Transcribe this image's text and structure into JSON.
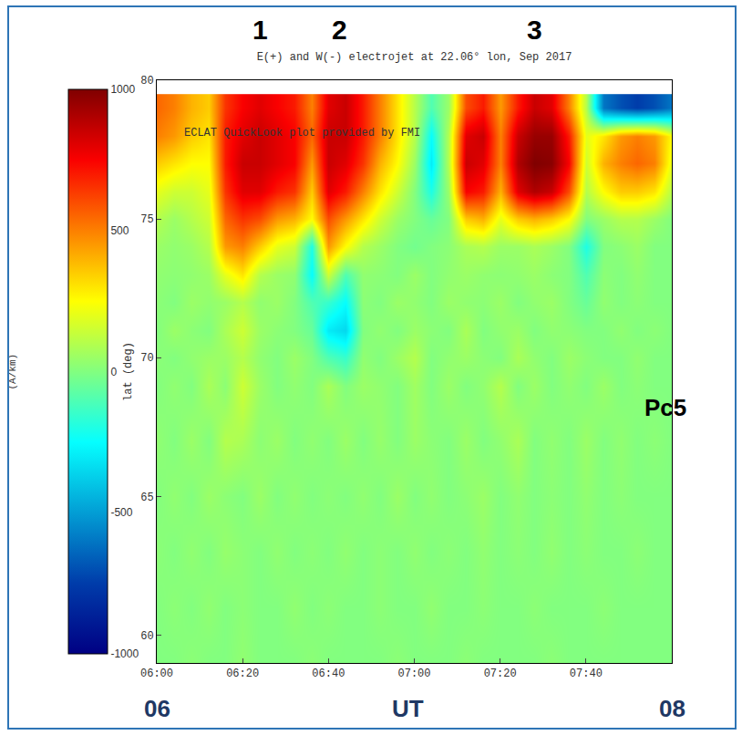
{
  "chart_data": {
    "type": "heatmap",
    "title": "E(+) and W(-) electrojet at 22.06° lon, Sep 2017",
    "y_label": "lat (deg)",
    "grid": false,
    "x": [
      360,
      364,
      368,
      372,
      376,
      380,
      384,
      388,
      392,
      396,
      400,
      404,
      408,
      412,
      416,
      420,
      424,
      428,
      432,
      436,
      440,
      444,
      448,
      452,
      456,
      460,
      464,
      468,
      472,
      476,
      480
    ],
    "y": [
      59,
      61,
      63,
      65,
      67,
      69,
      70,
      71,
      72,
      73,
      74,
      75,
      76,
      77,
      78,
      79
    ],
    "z": [
      [
        0,
        0,
        20,
        0,
        0,
        30,
        0,
        0,
        0,
        20,
        0,
        0,
        0,
        0,
        20,
        0,
        0,
        0,
        20,
        0,
        0,
        0,
        0,
        20,
        0,
        0,
        0,
        0,
        0,
        0,
        0
      ],
      [
        0,
        20,
        0,
        30,
        0,
        20,
        0,
        0,
        30,
        0,
        20,
        0,
        0,
        20,
        0,
        0,
        30,
        0,
        0,
        20,
        0,
        0,
        20,
        0,
        0,
        0,
        20,
        0,
        0,
        0,
        0
      ],
      [
        20,
        0,
        30,
        0,
        40,
        20,
        0,
        30,
        0,
        20,
        0,
        30,
        0,
        20,
        0,
        30,
        0,
        20,
        0,
        30,
        0,
        20,
        0,
        30,
        0,
        20,
        0,
        0,
        20,
        0,
        0
      ],
      [
        0,
        30,
        0,
        50,
        20,
        0,
        50,
        0,
        30,
        0,
        20,
        0,
        30,
        0,
        50,
        0,
        30,
        0,
        20,
        50,
        0,
        30,
        0,
        20,
        0,
        30,
        0,
        20,
        0,
        0,
        0
      ],
      [
        30,
        0,
        50,
        0,
        100,
        80,
        20,
        50,
        0,
        30,
        0,
        50,
        0,
        40,
        0,
        50,
        20,
        0,
        50,
        0,
        30,
        80,
        0,
        30,
        0,
        50,
        0,
        30,
        0,
        20,
        0
      ],
      [
        0,
        30,
        0,
        80,
        20,
        150,
        50,
        0,
        30,
        0,
        80,
        0,
        50,
        30,
        0,
        60,
        0,
        50,
        0,
        30,
        100,
        0,
        50,
        0,
        30,
        0,
        50,
        0,
        20,
        0,
        0
      ],
      [
        20,
        0,
        30,
        50,
        50,
        100,
        30,
        0,
        50,
        0,
        -100,
        -150,
        30,
        0,
        50,
        100,
        0,
        30,
        50,
        20,
        0,
        80,
        30,
        0,
        50,
        20,
        0,
        0,
        30,
        0,
        0
      ],
      [
        0,
        50,
        20,
        0,
        80,
        150,
        50,
        20,
        0,
        -50,
        -300,
        -350,
        0,
        30,
        0,
        50,
        20,
        0,
        80,
        0,
        30,
        50,
        0,
        30,
        20,
        0,
        0,
        30,
        0,
        20,
        0
      ],
      [
        20,
        0,
        50,
        30,
        50,
        100,
        30,
        50,
        0,
        -100,
        -150,
        -250,
        20,
        0,
        50,
        30,
        0,
        50,
        30,
        20,
        50,
        0,
        30,
        50,
        0,
        -50,
        30,
        0,
        20,
        0,
        0
      ],
      [
        30,
        20,
        30,
        50,
        200,
        300,
        100,
        50,
        30,
        -250,
        150,
        -100,
        30,
        20,
        0,
        50,
        0,
        30,
        50,
        30,
        20,
        30,
        50,
        20,
        0,
        -100,
        20,
        0,
        30,
        0,
        0
      ],
      [
        50,
        30,
        50,
        100,
        450,
        500,
        350,
        200,
        150,
        -200,
        450,
        250,
        100,
        50,
        0,
        -30,
        0,
        20,
        80,
        100,
        50,
        50,
        80,
        50,
        0,
        -200,
        0,
        20,
        50,
        0,
        0
      ],
      [
        100,
        50,
        100,
        150,
        550,
        650,
        600,
        450,
        400,
        250,
        600,
        450,
        300,
        150,
        50,
        0,
        -50,
        0,
        350,
        400,
        200,
        350,
        400,
        350,
        250,
        0,
        50,
        100,
        100,
        50,
        0
      ],
      [
        200,
        150,
        150,
        200,
        650,
        800,
        800,
        700,
        650,
        350,
        800,
        700,
        500,
        300,
        150,
        0,
        -200,
        50,
        750,
        700,
        400,
        800,
        900,
        850,
        600,
        100,
        250,
        350,
        350,
        300,
        100
      ],
      [
        350,
        300,
        250,
        250,
        700,
        850,
        850,
        800,
        750,
        450,
        850,
        800,
        650,
        400,
        250,
        50,
        -300,
        100,
        850,
        800,
        500,
        900,
        1000,
        980,
        750,
        150,
        400,
        500,
        550,
        500,
        200
      ],
      [
        500,
        450,
        350,
        300,
        700,
        800,
        850,
        800,
        750,
        550,
        850,
        850,
        700,
        500,
        300,
        100,
        -250,
        100,
        800,
        850,
        500,
        850,
        950,
        950,
        700,
        200,
        300,
        450,
        500,
        450,
        250
      ],
      [
        550,
        500,
        400,
        350,
        650,
        750,
        800,
        750,
        700,
        500,
        800,
        850,
        700,
        500,
        300,
        100,
        -100,
        50,
        600,
        700,
        450,
        700,
        850,
        800,
        500,
        100,
        -600,
        -700,
        -750,
        -700,
        -600
      ]
    ],
    "xlim": [
      360,
      480
    ],
    "xticks": [
      {
        "value": 360,
        "label": "06:00"
      },
      {
        "value": 380,
        "label": "06:20"
      },
      {
        "value": 400,
        "label": "06:40"
      },
      {
        "value": 420,
        "label": "07:00"
      },
      {
        "value": 440,
        "label": "07:20"
      },
      {
        "value": 460,
        "label": "07:40"
      }
    ],
    "ylim": [
      59,
      80
    ],
    "yticks": [
      60,
      65,
      70,
      75,
      80
    ],
    "colorbar": {
      "range": [
        -1000,
        1000
      ],
      "ticks": [
        -1000,
        -500,
        0,
        500,
        1000
      ],
      "title": "(A/km)"
    },
    "annotations": [
      {
        "text": "ECLAT QuickLook plot provided by FMI",
        "x": 366,
        "y": 78.1
      },
      {
        "text": "Pc5",
        "x": 478.5,
        "y": 68.2
      }
    ],
    "event_labels": [
      {
        "text": "1",
        "x": 384
      },
      {
        "text": "2",
        "x": 402.5
      },
      {
        "text": "3",
        "x": 448
      }
    ],
    "labels_below": [
      {
        "text": "06",
        "x": 360
      },
      {
        "text": "UT",
        "x": 418.5
      },
      {
        "text": "08",
        "x": 480
      }
    ]
  }
}
